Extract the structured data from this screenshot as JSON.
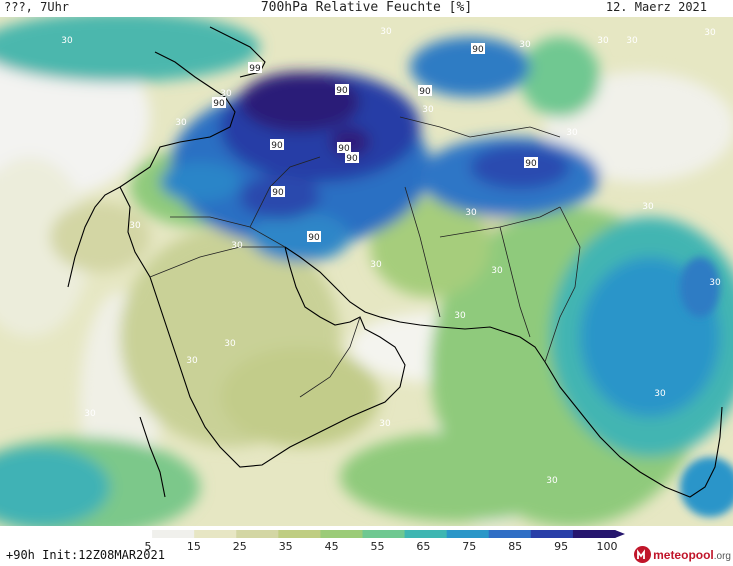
{
  "header": {
    "left": "???, 7Uhr",
    "center": "700hPa Relative Feuchte [%]",
    "right": "12. Maerz 2021"
  },
  "footer": {
    "init": "+90h Init:12Z08MAR2021",
    "brand": "meteopool",
    "brand_suffix": ".org"
  },
  "legend": {
    "ticks": [
      "5",
      "15",
      "25",
      "35",
      "45",
      "55",
      "65",
      "75",
      "85",
      "95",
      "100"
    ],
    "colors": [
      "#ffffff",
      "#f0f0ec",
      "#e7e6c4",
      "#d3d6a4",
      "#bfcd82",
      "#9bcb78",
      "#6fc891",
      "#3fb6b2",
      "#2b97c8",
      "#2f6ec5",
      "#293fa8",
      "#26166e"
    ]
  },
  "contour_labels": [
    {
      "text": "99"
    },
    {
      "text": "90"
    },
    {
      "text": "90"
    },
    {
      "text": "90"
    },
    {
      "text": "90"
    },
    {
      "text": "90"
    },
    {
      "text": "90"
    },
    {
      "text": "90"
    },
    {
      "text": "90"
    },
    {
      "text": "90"
    },
    {
      "text": "90"
    },
    {
      "text": "30"
    },
    {
      "text": "30"
    },
    {
      "text": "30"
    },
    {
      "text": "30"
    },
    {
      "text": "30"
    },
    {
      "text": "30"
    },
    {
      "text": "30"
    },
    {
      "text": "30"
    },
    {
      "text": "30"
    },
    {
      "text": "30"
    },
    {
      "text": "30"
    },
    {
      "text": "30"
    },
    {
      "text": "30"
    },
    {
      "text": "30"
    },
    {
      "text": "30"
    },
    {
      "text": "30"
    },
    {
      "text": "30"
    },
    {
      "text": "30"
    },
    {
      "text": "30"
    },
    {
      "text": "30"
    },
    {
      "text": "30"
    },
    {
      "text": "30"
    },
    {
      "text": "30"
    },
    {
      "text": "30"
    }
  ]
}
